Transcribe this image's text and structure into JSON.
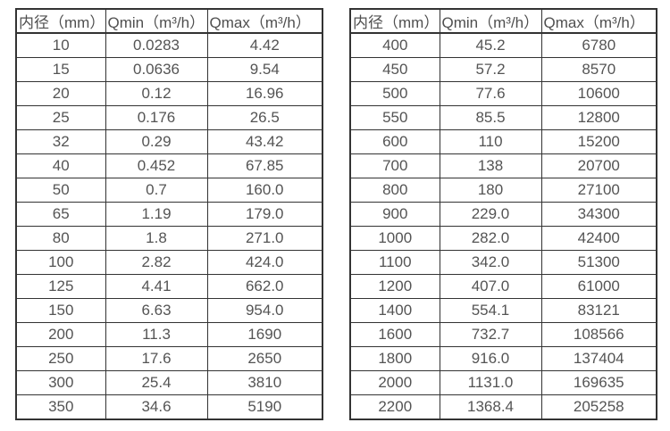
{
  "colors": {
    "background": "#ffffff",
    "border": "#333333",
    "text": "#545454",
    "header_text": "#4f4f4f"
  },
  "tables": [
    {
      "name": "flow-range-table-small-diameters",
      "columns": [
        "内径（mm）",
        "Qmin（m³/h）",
        "Qmax（m³/h）"
      ],
      "rows": [
        [
          "10",
          "0.0283",
          "4.42"
        ],
        [
          "15",
          "0.0636",
          "9.54"
        ],
        [
          "20",
          "0.12",
          "16.96"
        ],
        [
          "25",
          "0.176",
          "26.5"
        ],
        [
          "32",
          "0.29",
          "43.42"
        ],
        [
          "40",
          "0.452",
          "67.85"
        ],
        [
          "50",
          "0.7",
          "160.0"
        ],
        [
          "65",
          "1.19",
          "179.0"
        ],
        [
          "80",
          "1.8",
          "271.0"
        ],
        [
          "100",
          "2.82",
          "424.0"
        ],
        [
          "125",
          "4.41",
          "662.0"
        ],
        [
          "150",
          "6.63",
          "954.0"
        ],
        [
          "200",
          "11.3",
          "1690"
        ],
        [
          "250",
          "17.6",
          "2650"
        ],
        [
          "300",
          "25.4",
          "3810"
        ],
        [
          "350",
          "34.6",
          "5190"
        ]
      ]
    },
    {
      "name": "flow-range-table-large-diameters",
      "columns": [
        "内径（mm）",
        "Qmin（m³/h）",
        "Qmax（m³/h）"
      ],
      "rows": [
        [
          "400",
          "45.2",
          "6780"
        ],
        [
          "450",
          "57.2",
          "8570"
        ],
        [
          "500",
          "77.6",
          "10600"
        ],
        [
          "550",
          "85.5",
          "12800"
        ],
        [
          "600",
          "110",
          "15200"
        ],
        [
          "700",
          "138",
          "20700"
        ],
        [
          "800",
          "180",
          "27100"
        ],
        [
          "900",
          "229.0",
          "34300"
        ],
        [
          "1000",
          "282.0",
          "42400"
        ],
        [
          "1100",
          "342.0",
          "51300"
        ],
        [
          "1200",
          "407.0",
          "61000"
        ],
        [
          "1400",
          "554.1",
          "83121"
        ],
        [
          "1600",
          "732.7",
          "108566"
        ],
        [
          "1800",
          "916.0",
          "137404"
        ],
        [
          "2000",
          "1131.0",
          "169635"
        ],
        [
          "2200",
          "1368.4",
          "205258"
        ]
      ]
    }
  ],
  "chart_data": [
    {
      "type": "table",
      "title": "",
      "columns": [
        "内径（mm）",
        "Qmin（m³/h）",
        "Qmax（m³/h）"
      ],
      "rows": [
        [
          10,
          0.0283,
          4.42
        ],
        [
          15,
          0.0636,
          9.54
        ],
        [
          20,
          0.12,
          16.96
        ],
        [
          25,
          0.176,
          26.5
        ],
        [
          32,
          0.29,
          43.42
        ],
        [
          40,
          0.452,
          67.85
        ],
        [
          50,
          0.7,
          160.0
        ],
        [
          65,
          1.19,
          179.0
        ],
        [
          80,
          1.8,
          271.0
        ],
        [
          100,
          2.82,
          424.0
        ],
        [
          125,
          4.41,
          662.0
        ],
        [
          150,
          6.63,
          954.0
        ],
        [
          200,
          11.3,
          1690
        ],
        [
          250,
          17.6,
          2650
        ],
        [
          300,
          25.4,
          3810
        ],
        [
          350,
          34.6,
          5190
        ]
      ]
    },
    {
      "type": "table",
      "title": "",
      "columns": [
        "内径（mm）",
        "Qmin（m³/h）",
        "Qmax（m³/h）"
      ],
      "rows": [
        [
          400,
          45.2,
          6780
        ],
        [
          450,
          57.2,
          8570
        ],
        [
          500,
          77.6,
          10600
        ],
        [
          550,
          85.5,
          12800
        ],
        [
          600,
          110,
          15200
        ],
        [
          700,
          138,
          20700
        ],
        [
          800,
          180,
          27100
        ],
        [
          900,
          229.0,
          34300
        ],
        [
          1000,
          282.0,
          42400
        ],
        [
          1100,
          342.0,
          51300
        ],
        [
          1200,
          407.0,
          61000
        ],
        [
          1400,
          554.1,
          83121
        ],
        [
          1600,
          732.7,
          108566
        ],
        [
          1800,
          916.0,
          137404
        ],
        [
          2000,
          1131.0,
          169635
        ],
        [
          2200,
          1368.4,
          205258
        ]
      ]
    }
  ]
}
